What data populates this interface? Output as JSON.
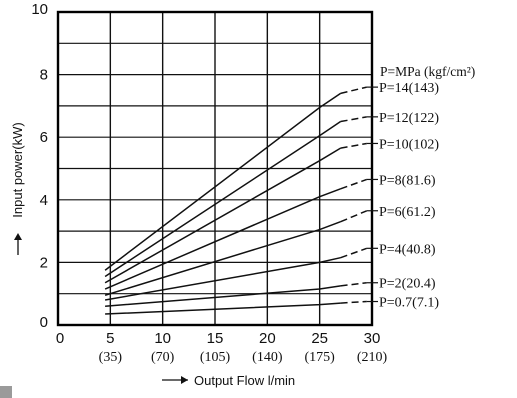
{
  "chart_data": {
    "type": "line",
    "title": "",
    "xlabel": "Output Flow l/min",
    "ylabel": "Input power(kW)",
    "xlim": [
      0,
      30
    ],
    "ylim": [
      0,
      10
    ],
    "grid": true,
    "x_ticks": [
      "0",
      "5",
      "10",
      "15",
      "20",
      "25",
      "30"
    ],
    "x_ticks_secondary": [
      "(35)",
      "(70)",
      "(105)",
      "(140)",
      "(175)",
      "(210)"
    ],
    "y_ticks": [
      "0",
      "2",
      "4",
      "6",
      "8",
      "10"
    ],
    "legend_header": "P=MPa (kgf/cm²)",
    "series": [
      {
        "name": "P=14(143)",
        "x": [
          4.5,
          25,
          27,
          29.5
        ],
        "y": [
          1.75,
          6.95,
          7.4,
          7.6
        ]
      },
      {
        "name": "P=12(122)",
        "x": [
          4.5,
          25,
          27,
          29.5
        ],
        "y": [
          1.55,
          6.05,
          6.5,
          6.65
        ]
      },
      {
        "name": "P=10(102)",
        "x": [
          4.5,
          25,
          27,
          29.5
        ],
        "y": [
          1.35,
          5.25,
          5.65,
          5.8
        ]
      },
      {
        "name": "P=8(81.6)",
        "x": [
          4.5,
          25,
          27,
          29.5
        ],
        "y": [
          1.15,
          4.1,
          4.35,
          4.65
        ]
      },
      {
        "name": "P=6(61.2)",
        "x": [
          4.5,
          25,
          27,
          29.5
        ],
        "y": [
          0.95,
          3.05,
          3.3,
          3.65
        ]
      },
      {
        "name": "P=4(40.8)",
        "x": [
          4.5,
          25,
          27,
          29.5
        ],
        "y": [
          0.8,
          2.0,
          2.15,
          2.45
        ]
      },
      {
        "name": "P=2(20.4)",
        "x": [
          4.5,
          25,
          27,
          29.5
        ],
        "y": [
          0.6,
          1.15,
          1.25,
          1.35
        ]
      },
      {
        "name": "P=0.7(7.1)",
        "x": [
          4.5,
          25,
          27,
          29.5
        ],
        "y": [
          0.35,
          0.65,
          0.7,
          0.75
        ]
      }
    ]
  }
}
